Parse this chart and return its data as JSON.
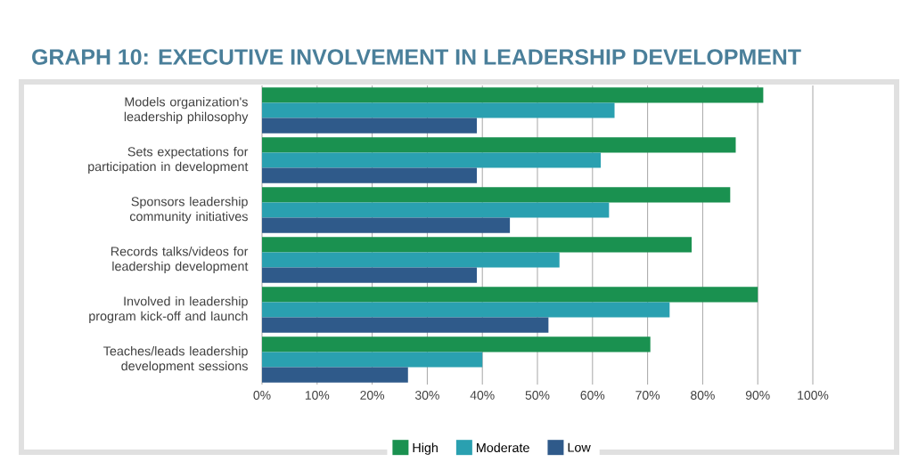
{
  "chart_data": {
    "type": "bar",
    "orientation": "horizontal",
    "title": "GRAPH 10: EXECUTIVE INVOLVEMENT IN LEADERSHIP DEVELOPMENT",
    "categories": [
      "Models organization's leadership philosophy",
      "Sets expectations for participation in development",
      "Sponsors leadership community initiatives",
      "Records talks/videos for leadership development",
      "Involved in leadership program kick-off and launch",
      "Teaches/leads leadership development sessions"
    ],
    "series": [
      {
        "name": "High",
        "color": "#1a9150",
        "values": [
          91,
          86,
          85,
          78,
          90,
          70.5
        ]
      },
      {
        "name": "Moderate",
        "color": "#2aa0b0",
        "values": [
          64,
          61.5,
          63,
          54,
          74,
          40
        ]
      },
      {
        "name": "Low",
        "color": "#2f5a8a",
        "values": [
          39,
          39,
          45,
          39,
          52,
          26.5
        ]
      }
    ],
    "xlim": [
      0,
      100
    ],
    "xticks": [
      {
        "value": 0,
        "label": "0%"
      },
      {
        "value": 10,
        "label": "10%"
      },
      {
        "value": 20,
        "label": "20%"
      },
      {
        "value": 30,
        "label": "30%"
      },
      {
        "value": 40,
        "label": "40%"
      },
      {
        "value": 50,
        "label": "50%"
      },
      {
        "value": 60,
        "label": "60%"
      },
      {
        "value": 70,
        "label": "70%"
      },
      {
        "value": 80,
        "label": "80%"
      },
      {
        "value": 90,
        "label": "90%"
      },
      {
        "value": 100,
        "label": "100%"
      }
    ],
    "grid": "x",
    "legend": "bottom"
  }
}
